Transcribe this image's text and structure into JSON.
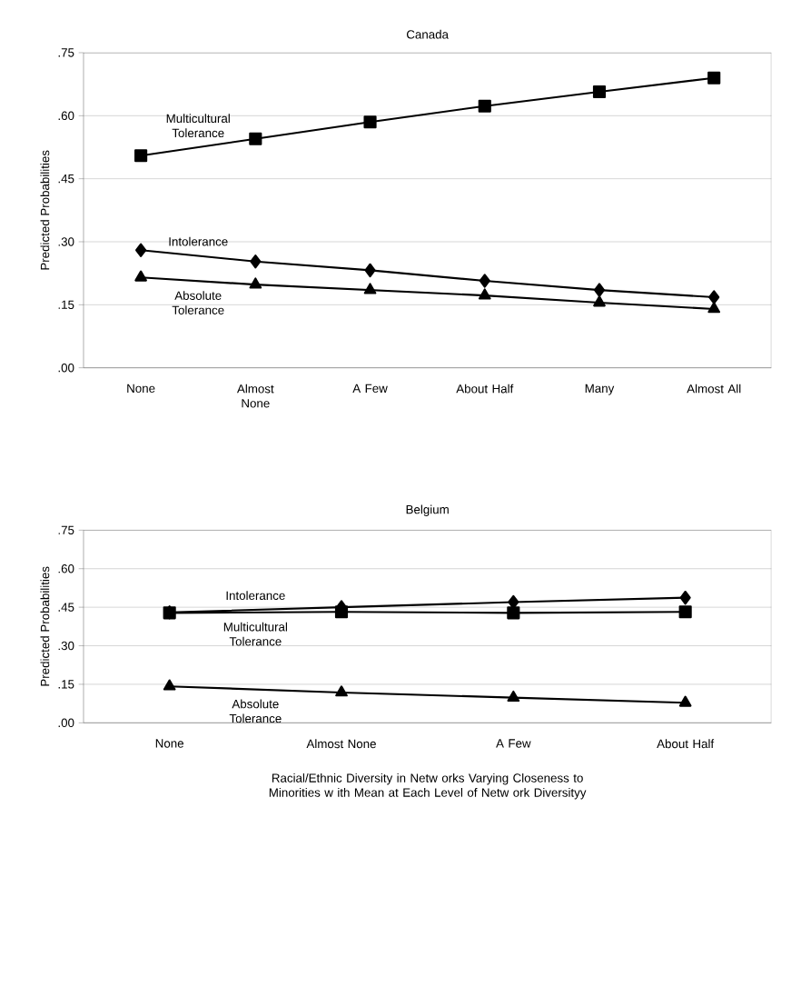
{
  "chart_data": [
    {
      "type": "line",
      "title": "Canada",
      "ylabel": "Predicted Probabilities",
      "categories": [
        "None",
        "Almost None",
        "A Few",
        "About Half",
        "Many",
        "Almost All"
      ],
      "series": [
        {
          "name": "Multicultural Tolerance",
          "color": "#000000",
          "marker": "square",
          "values": [
            0.505,
            0.545,
            0.585,
            0.623,
            0.657,
            0.69
          ]
        },
        {
          "name": "Intolerance",
          "color": "#000000",
          "marker": "diamond",
          "values": [
            0.28,
            0.253,
            0.232,
            0.207,
            0.185,
            0.168
          ]
        },
        {
          "name": "Absolute Tolerance",
          "color": "#000000",
          "marker": "triangle",
          "values": [
            0.215,
            0.198,
            0.185,
            0.172,
            0.155,
            0.14
          ]
        }
      ],
      "ylim": [
        0,
        0.75
      ],
      "yticks": [
        {
          "value": 0,
          "label": ".00"
        },
        {
          "value": 0.15,
          "label": ".15"
        },
        {
          "value": 0.3,
          "label": ".30"
        },
        {
          "value": 0.45,
          "label": ".45"
        },
        {
          "value": 0.6,
          "label": ".60"
        },
        {
          "value": 0.75,
          "label": ".75"
        }
      ],
      "grid": "y"
    },
    {
      "type": "line",
      "title": "Belgium",
      "ylabel": "Predicted Probabilities",
      "xlabel": "Racial/Ethnic Diversity in Netw orks Varying Closeness to Minorities w ith Mean at Each Level of Netw ork Diversityy",
      "categories": [
        "None",
        "Almost None",
        "A Few",
        "About Half"
      ],
      "series": [
        {
          "name": "Intolerance",
          "color": "#000000",
          "marker": "diamond",
          "values": [
            0.43,
            0.45,
            0.47,
            0.487
          ]
        },
        {
          "name": "Multicultural Tolerance",
          "color": "#000000",
          "marker": "square",
          "values": [
            0.428,
            0.432,
            0.428,
            0.432
          ]
        },
        {
          "name": "Absolute Tolerance",
          "color": "#000000",
          "marker": "triangle",
          "values": [
            0.142,
            0.118,
            0.098,
            0.078
          ]
        }
      ],
      "ylim": [
        0,
        0.75
      ],
      "yticks": [
        {
          "value": 0,
          "label": ".00"
        },
        {
          "value": 0.15,
          "label": ".15"
        },
        {
          "value": 0.3,
          "label": ".30"
        },
        {
          "value": 0.45,
          "label": ".45"
        },
        {
          "value": 0.6,
          "label": ".60"
        },
        {
          "value": 0.75,
          "label": ".75"
        }
      ],
      "grid": "y"
    }
  ]
}
